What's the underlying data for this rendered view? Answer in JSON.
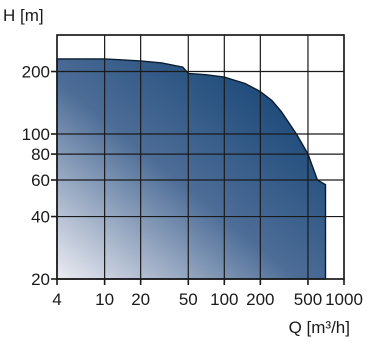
{
  "chart_data": {
    "type": "area",
    "title": "",
    "xlabel": "Q [m³/h]",
    "ylabel": "H [m]",
    "x_scale": "log",
    "y_scale": "log",
    "xlim": [
      4,
      1000
    ],
    "ylim": [
      20,
      300
    ],
    "x_ticks": [
      4,
      10,
      20,
      50,
      100,
      200,
      500,
      1000
    ],
    "x_tick_labels": [
      "4",
      "10",
      "20",
      "50",
      "100",
      "200",
      "500",
      "1000"
    ],
    "y_ticks": [
      20,
      40,
      60,
      80,
      100,
      200
    ],
    "y_tick_labels": [
      "20",
      "40",
      "60",
      "80",
      "100",
      "200"
    ],
    "y_grid_lines": [
      20,
      40,
      60,
      80,
      100,
      200,
      300
    ],
    "grid": true,
    "series": [
      {
        "x": [
          4,
          10,
          20,
          30,
          45,
          50,
          70,
          100,
          150,
          200,
          250,
          300,
          400,
          500,
          600,
          700,
          700
        ],
        "y": [
          230,
          230,
          225,
          220,
          210,
          196,
          193,
          188,
          175,
          160,
          145,
          128,
          100,
          80,
          60,
          57,
          20
        ]
      }
    ],
    "colors": {
      "fill_dark": "#073a6c",
      "fill_mid": "#4d6d97",
      "fill_light": "#ececf2",
      "outline": "#0b1d33",
      "grid": "#1a1a1a"
    }
  }
}
